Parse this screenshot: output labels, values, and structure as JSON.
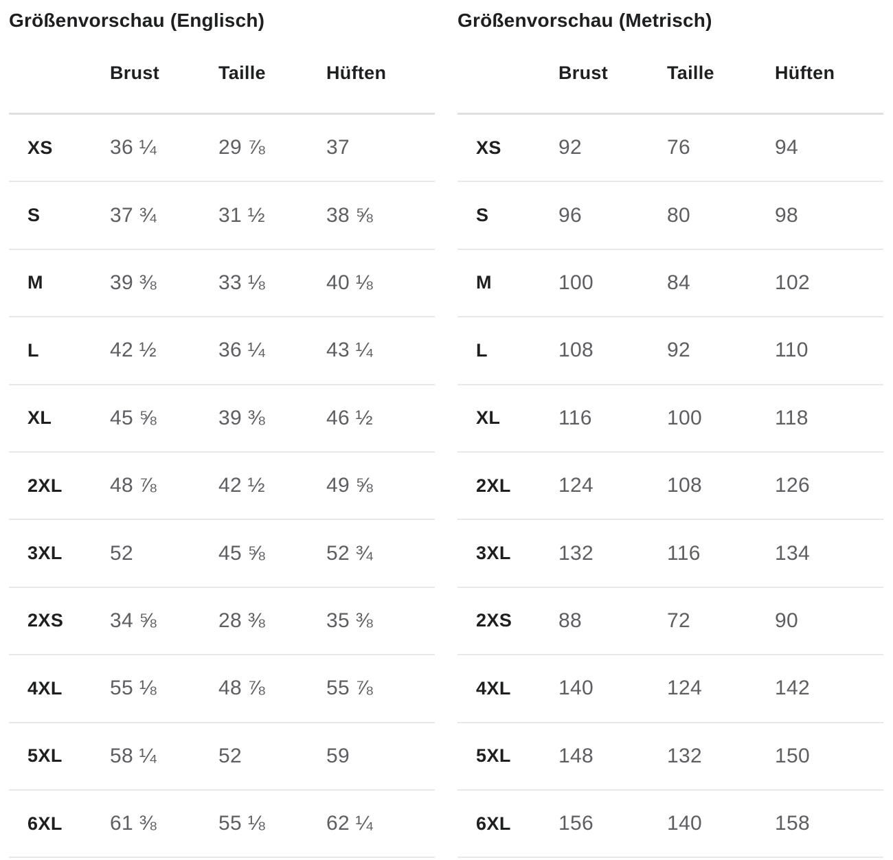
{
  "colors": {
    "text_primary": "#1e1f21",
    "text_values": "#5c5e61",
    "divider_header": "#dedfe0",
    "divider_row": "#e7e8e9",
    "background": "#ffffff"
  },
  "tables": [
    {
      "title": "Größenvorschau (Englisch)",
      "columns": [
        "Brust",
        "Taille",
        "Hüften"
      ],
      "rows": [
        {
          "size": "XS",
          "values": [
            "36 ¼",
            "29 ⅞",
            "37"
          ]
        },
        {
          "size": "S",
          "values": [
            "37 ¾",
            "31 ½",
            "38 ⅝"
          ]
        },
        {
          "size": "M",
          "values": [
            "39 ⅜",
            "33 ⅛",
            "40 ⅛"
          ]
        },
        {
          "size": "L",
          "values": [
            "42 ½",
            "36 ¼",
            "43 ¼"
          ]
        },
        {
          "size": "XL",
          "values": [
            "45 ⅝",
            "39 ⅜",
            "46 ½"
          ]
        },
        {
          "size": "2XL",
          "values": [
            "48 ⅞",
            "42 ½",
            "49 ⅝"
          ]
        },
        {
          "size": "3XL",
          "values": [
            "52",
            "45 ⅝",
            "52 ¾"
          ]
        },
        {
          "size": "2XS",
          "values": [
            "34 ⅝",
            "28 ⅜",
            "35 ⅜"
          ]
        },
        {
          "size": "4XL",
          "values": [
            "55 ⅛",
            "48 ⅞",
            "55 ⅞"
          ]
        },
        {
          "size": "5XL",
          "values": [
            "58 ¼",
            "52",
            "59"
          ]
        },
        {
          "size": "6XL",
          "values": [
            "61 ⅜",
            "55 ⅛",
            "62 ¼"
          ]
        }
      ]
    },
    {
      "title": "Größenvorschau (Metrisch)",
      "columns": [
        "Brust",
        "Taille",
        "Hüften"
      ],
      "rows": [
        {
          "size": "XS",
          "values": [
            "92",
            "76",
            "94"
          ]
        },
        {
          "size": "S",
          "values": [
            "96",
            "80",
            "98"
          ]
        },
        {
          "size": "M",
          "values": [
            "100",
            "84",
            "102"
          ]
        },
        {
          "size": "L",
          "values": [
            "108",
            "92",
            "110"
          ]
        },
        {
          "size": "XL",
          "values": [
            "116",
            "100",
            "118"
          ]
        },
        {
          "size": "2XL",
          "values": [
            "124",
            "108",
            "126"
          ]
        },
        {
          "size": "3XL",
          "values": [
            "132",
            "116",
            "134"
          ]
        },
        {
          "size": "2XS",
          "values": [
            "88",
            "72",
            "90"
          ]
        },
        {
          "size": "4XL",
          "values": [
            "140",
            "124",
            "142"
          ]
        },
        {
          "size": "5XL",
          "values": [
            "148",
            "132",
            "150"
          ]
        },
        {
          "size": "6XL",
          "values": [
            "156",
            "140",
            "158"
          ]
        }
      ]
    }
  ]
}
